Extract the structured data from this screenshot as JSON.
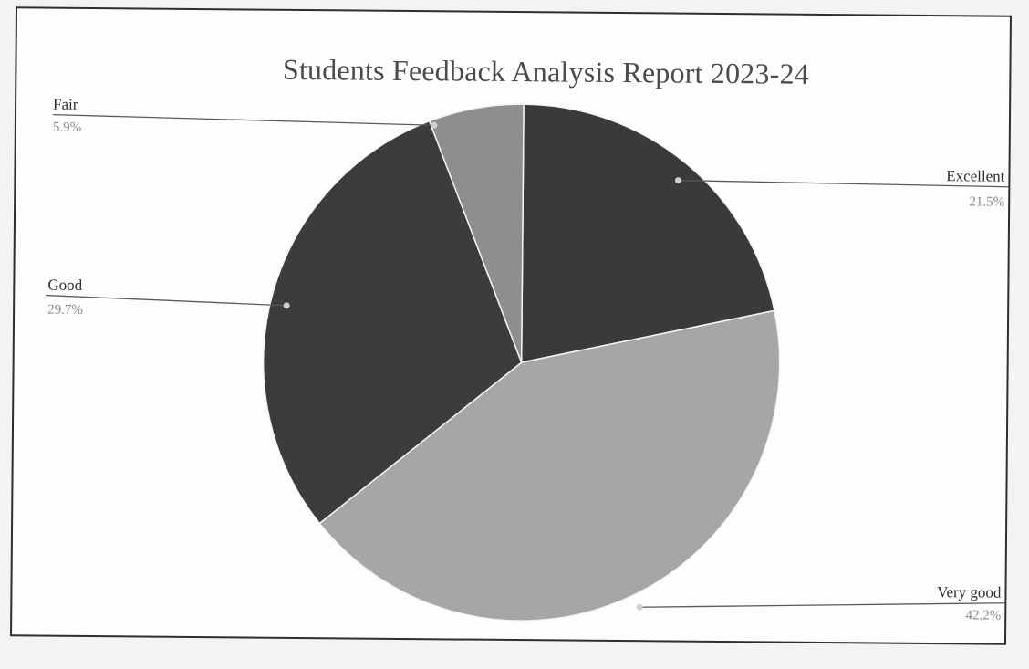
{
  "chart_data": {
    "type": "pie",
    "title": "Students Feedback Analysis Report 2023-24",
    "slices": [
      {
        "label": "Excellent",
        "percent_label": "21.5%",
        "value": 21.5,
        "color": "#3a3a3a"
      },
      {
        "label": "Very good",
        "percent_label": "42.2%",
        "value": 42.2,
        "color": "#a6a6a6"
      },
      {
        "label": "Good",
        "percent_label": "29.7%",
        "value": 29.7,
        "color": "#3c3c3c"
      },
      {
        "label": "Fair",
        "percent_label": "5.9%",
        "value": 5.9,
        "color": "#8e8e8e"
      }
    ],
    "start_angle_deg": 0,
    "direction": "clockwise",
    "legend": "none",
    "label_placement": "outside-with-leader-lines"
  }
}
